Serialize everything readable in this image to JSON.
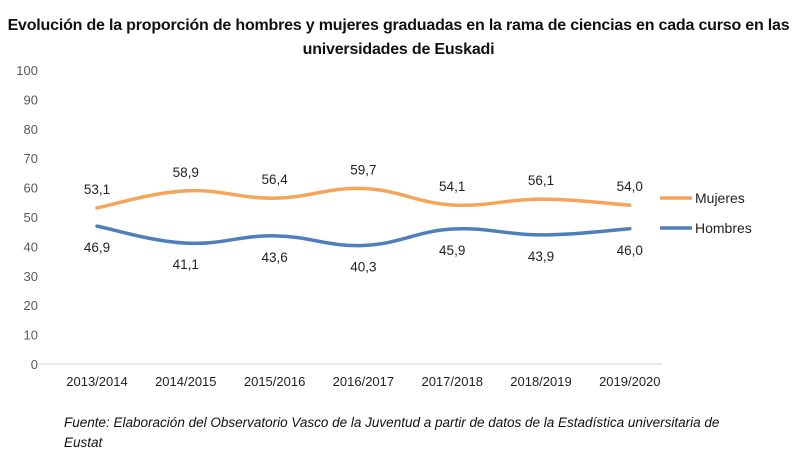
{
  "chart_data": {
    "type": "line",
    "title": "Evolución de la proporción de hombres y mujeres graduadas en la rama de ciencias en cada curso en las universidades de Euskadi",
    "categories": [
      "2013/2014",
      "2014/2015",
      "2015/2016",
      "2016/2017",
      "2017/2018",
      "2018/2019",
      "2019/2020"
    ],
    "series": [
      {
        "name": "Mujeres",
        "color": "#F5A458",
        "values": [
          53.1,
          58.9,
          56.4,
          59.7,
          54.1,
          56.1,
          54.0
        ],
        "labels": [
          "53,1",
          "58,9",
          "56,4",
          "59,7",
          "54,1",
          "56,1",
          "54,0"
        ]
      },
      {
        "name": "Hombres",
        "color": "#4F7FBA",
        "values": [
          46.9,
          41.1,
          43.6,
          40.3,
          45.9,
          43.9,
          46.0
        ],
        "labels": [
          "46,9",
          "41,1",
          "43,6",
          "40,3",
          "45,9",
          "43,9",
          "46,0"
        ]
      }
    ],
    "ylim": [
      0,
      100
    ],
    "yticks": [
      "0",
      "10",
      "20",
      "30",
      "40",
      "50",
      "60",
      "70",
      "80",
      "90",
      "100"
    ],
    "smooth": true,
    "grid": false,
    "legend": "right",
    "source_note": "Fuente: Elaboración del Observatorio Vasco de la Juventud a partir de datos de la Estadística universitaria de Eustat"
  }
}
